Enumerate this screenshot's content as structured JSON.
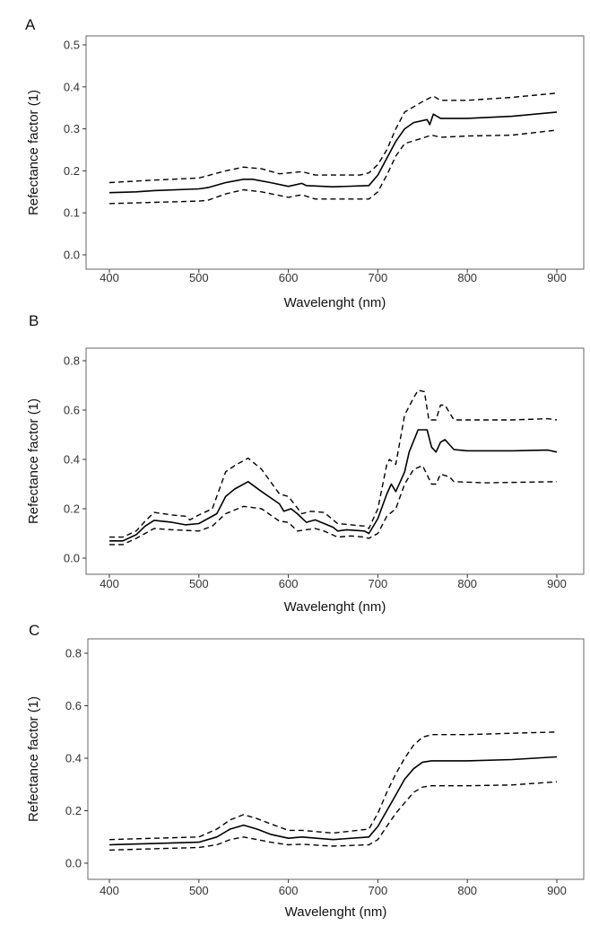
{
  "chart_data": [
    {
      "panel_label": "A",
      "type": "line",
      "xlabel": "Wavelenght (nm)",
      "ylabel": "Refectance factor (1)",
      "xlim": [
        400,
        900
      ],
      "ylim": [
        0,
        0.5
      ],
      "xticks": [
        400,
        500,
        600,
        700,
        800,
        900
      ],
      "yticks": [
        "0.0",
        "0.1",
        "0.2",
        "0.3",
        "0.4",
        "0.5"
      ],
      "grid": false,
      "series": [
        {
          "style": "solid",
          "points": [
            [
              400,
              0.148
            ],
            [
              430,
              0.15
            ],
            [
              450,
              0.153
            ],
            [
              500,
              0.157
            ],
            [
              510,
              0.16
            ],
            [
              530,
              0.172
            ],
            [
              550,
              0.18
            ],
            [
              560,
              0.18
            ],
            [
              580,
              0.172
            ],
            [
              600,
              0.163
            ],
            [
              615,
              0.17
            ],
            [
              620,
              0.165
            ],
            [
              650,
              0.162
            ],
            [
              690,
              0.165
            ],
            [
              700,
              0.19
            ],
            [
              710,
              0.23
            ],
            [
              720,
              0.27
            ],
            [
              730,
              0.3
            ],
            [
              740,
              0.315
            ],
            [
              755,
              0.322
            ],
            [
              758,
              0.31
            ],
            [
              762,
              0.335
            ],
            [
              770,
              0.325
            ],
            [
              800,
              0.325
            ],
            [
              850,
              0.33
            ],
            [
              900,
              0.34
            ]
          ]
        },
        {
          "style": "dashed",
          "points": [
            [
              400,
              0.172
            ],
            [
              450,
              0.178
            ],
            [
              500,
              0.183
            ],
            [
              530,
              0.2
            ],
            [
              550,
              0.209
            ],
            [
              570,
              0.205
            ],
            [
              590,
              0.193
            ],
            [
              615,
              0.198
            ],
            [
              630,
              0.19
            ],
            [
              680,
              0.19
            ],
            [
              690,
              0.195
            ],
            [
              700,
              0.215
            ],
            [
              710,
              0.25
            ],
            [
              720,
              0.3
            ],
            [
              730,
              0.34
            ],
            [
              750,
              0.365
            ],
            [
              762,
              0.378
            ],
            [
              770,
              0.368
            ],
            [
              800,
              0.368
            ],
            [
              850,
              0.375
            ],
            [
              900,
              0.385
            ]
          ]
        },
        {
          "style": "dashed",
          "points": [
            [
              400,
              0.122
            ],
            [
              450,
              0.125
            ],
            [
              500,
              0.128
            ],
            [
              510,
              0.13
            ],
            [
              530,
              0.145
            ],
            [
              550,
              0.155
            ],
            [
              570,
              0.15
            ],
            [
              600,
              0.137
            ],
            [
              615,
              0.143
            ],
            [
              630,
              0.133
            ],
            [
              690,
              0.133
            ],
            [
              700,
              0.15
            ],
            [
              710,
              0.19
            ],
            [
              720,
              0.235
            ],
            [
              730,
              0.265
            ],
            [
              750,
              0.278
            ],
            [
              760,
              0.285
            ],
            [
              770,
              0.28
            ],
            [
              800,
              0.283
            ],
            [
              850,
              0.285
            ],
            [
              900,
              0.297
            ]
          ]
        }
      ]
    },
    {
      "panel_label": "B",
      "type": "line",
      "xlabel": "Wavelenght (nm)",
      "ylabel": "Refectance factor (1)",
      "xlim": [
        400,
        900
      ],
      "ylim": [
        0,
        0.8
      ],
      "xticks": [
        400,
        500,
        600,
        700,
        800,
        900
      ],
      "yticks": [
        "0.0",
        "0.2",
        "0.4",
        "0.6",
        "0.8"
      ],
      "grid": false,
      "series": [
        {
          "style": "solid",
          "points": [
            [
              400,
              0.07
            ],
            [
              415,
              0.07
            ],
            [
              430,
              0.095
            ],
            [
              440,
              0.13
            ],
            [
              450,
              0.153
            ],
            [
              470,
              0.145
            ],
            [
              485,
              0.135
            ],
            [
              500,
              0.14
            ],
            [
              510,
              0.16
            ],
            [
              520,
              0.18
            ],
            [
              530,
              0.25
            ],
            [
              540,
              0.28
            ],
            [
              555,
              0.31
            ],
            [
              570,
              0.27
            ],
            [
              590,
              0.22
            ],
            [
              595,
              0.19
            ],
            [
              603,
              0.2
            ],
            [
              610,
              0.18
            ],
            [
              620,
              0.145
            ],
            [
              630,
              0.155
            ],
            [
              650,
              0.125
            ],
            [
              655,
              0.11
            ],
            [
              665,
              0.115
            ],
            [
              685,
              0.11
            ],
            [
              690,
              0.1
            ],
            [
              700,
              0.16
            ],
            [
              710,
              0.26
            ],
            [
              715,
              0.3
            ],
            [
              720,
              0.27
            ],
            [
              725,
              0.31
            ],
            [
              730,
              0.35
            ],
            [
              735,
              0.43
            ],
            [
              745,
              0.52
            ],
            [
              755,
              0.52
            ],
            [
              760,
              0.45
            ],
            [
              765,
              0.43
            ],
            [
              770,
              0.47
            ],
            [
              775,
              0.48
            ],
            [
              785,
              0.44
            ],
            [
              800,
              0.435
            ],
            [
              850,
              0.435
            ],
            [
              890,
              0.438
            ],
            [
              900,
              0.43
            ]
          ]
        },
        {
          "style": "dashed",
          "points": [
            [
              400,
              0.085
            ],
            [
              415,
              0.085
            ],
            [
              430,
              0.11
            ],
            [
              440,
              0.15
            ],
            [
              450,
              0.185
            ],
            [
              470,
              0.175
            ],
            [
              485,
              0.17
            ],
            [
              490,
              0.155
            ],
            [
              500,
              0.175
            ],
            [
              515,
              0.2
            ],
            [
              530,
              0.35
            ],
            [
              540,
              0.375
            ],
            [
              555,
              0.405
            ],
            [
              570,
              0.36
            ],
            [
              590,
              0.26
            ],
            [
              600,
              0.25
            ],
            [
              615,
              0.18
            ],
            [
              625,
              0.19
            ],
            [
              640,
              0.185
            ],
            [
              655,
              0.14
            ],
            [
              685,
              0.13
            ],
            [
              690,
              0.12
            ],
            [
              700,
              0.2
            ],
            [
              710,
              0.38
            ],
            [
              713,
              0.4
            ],
            [
              720,
              0.38
            ],
            [
              730,
              0.58
            ],
            [
              740,
              0.65
            ],
            [
              745,
              0.68
            ],
            [
              752,
              0.675
            ],
            [
              757,
              0.56
            ],
            [
              765,
              0.56
            ],
            [
              770,
              0.62
            ],
            [
              775,
              0.62
            ],
            [
              785,
              0.56
            ],
            [
              800,
              0.56
            ],
            [
              850,
              0.56
            ],
            [
              890,
              0.565
            ],
            [
              900,
              0.56
            ]
          ]
        },
        {
          "style": "dashed",
          "points": [
            [
              400,
              0.055
            ],
            [
              415,
              0.055
            ],
            [
              430,
              0.08
            ],
            [
              450,
              0.12
            ],
            [
              470,
              0.115
            ],
            [
              500,
              0.11
            ],
            [
              515,
              0.13
            ],
            [
              530,
              0.18
            ],
            [
              550,
              0.21
            ],
            [
              570,
              0.2
            ],
            [
              590,
              0.15
            ],
            [
              600,
              0.145
            ],
            [
              610,
              0.11
            ],
            [
              630,
              0.12
            ],
            [
              640,
              0.11
            ],
            [
              655,
              0.085
            ],
            [
              670,
              0.09
            ],
            [
              685,
              0.085
            ],
            [
              690,
              0.08
            ],
            [
              700,
              0.1
            ],
            [
              710,
              0.17
            ],
            [
              720,
              0.2
            ],
            [
              730,
              0.3
            ],
            [
              740,
              0.36
            ],
            [
              750,
              0.375
            ],
            [
              760,
              0.3
            ],
            [
              765,
              0.3
            ],
            [
              770,
              0.34
            ],
            [
              780,
              0.33
            ],
            [
              785,
              0.31
            ],
            [
              820,
              0.305
            ],
            [
              900,
              0.31
            ]
          ]
        }
      ]
    },
    {
      "panel_label": "C",
      "type": "line",
      "xlabel": "Wavelenght (nm)",
      "ylabel": "Refectance factor (1)",
      "xlim": [
        400,
        900
      ],
      "ylim": [
        0,
        0.8
      ],
      "xticks": [
        400,
        500,
        600,
        700,
        800,
        900
      ],
      "yticks": [
        "0.0",
        "0.2",
        "0.4",
        "0.6",
        "0.8"
      ],
      "grid": false,
      "series": [
        {
          "style": "solid",
          "points": [
            [
              400,
              0.07
            ],
            [
              450,
              0.075
            ],
            [
              500,
              0.08
            ],
            [
              520,
              0.1
            ],
            [
              535,
              0.13
            ],
            [
              550,
              0.145
            ],
            [
              565,
              0.13
            ],
            [
              580,
              0.11
            ],
            [
              600,
              0.095
            ],
            [
              615,
              0.1
            ],
            [
              650,
              0.09
            ],
            [
              690,
              0.1
            ],
            [
              700,
              0.14
            ],
            [
              710,
              0.2
            ],
            [
              720,
              0.26
            ],
            [
              730,
              0.32
            ],
            [
              740,
              0.36
            ],
            [
              750,
              0.385
            ],
            [
              760,
              0.39
            ],
            [
              800,
              0.39
            ],
            [
              850,
              0.395
            ],
            [
              900,
              0.405
            ]
          ]
        },
        {
          "style": "dashed",
          "points": [
            [
              400,
              0.09
            ],
            [
              450,
              0.095
            ],
            [
              500,
              0.1
            ],
            [
              520,
              0.13
            ],
            [
              535,
              0.165
            ],
            [
              550,
              0.185
            ],
            [
              565,
              0.17
            ],
            [
              580,
              0.15
            ],
            [
              600,
              0.125
            ],
            [
              615,
              0.125
            ],
            [
              650,
              0.115
            ],
            [
              690,
              0.13
            ],
            [
              700,
              0.19
            ],
            [
              710,
              0.27
            ],
            [
              720,
              0.34
            ],
            [
              730,
              0.4
            ],
            [
              740,
              0.45
            ],
            [
              750,
              0.48
            ],
            [
              760,
              0.49
            ],
            [
              800,
              0.49
            ],
            [
              850,
              0.495
            ],
            [
              900,
              0.5
            ]
          ]
        },
        {
          "style": "dashed",
          "points": [
            [
              400,
              0.05
            ],
            [
              450,
              0.055
            ],
            [
              500,
              0.06
            ],
            [
              520,
              0.07
            ],
            [
              535,
              0.09
            ],
            [
              550,
              0.1
            ],
            [
              565,
              0.09
            ],
            [
              580,
              0.08
            ],
            [
              600,
              0.07
            ],
            [
              615,
              0.072
            ],
            [
              650,
              0.065
            ],
            [
              690,
              0.07
            ],
            [
              700,
              0.09
            ],
            [
              710,
              0.14
            ],
            [
              720,
              0.19
            ],
            [
              730,
              0.23
            ],
            [
              740,
              0.27
            ],
            [
              750,
              0.29
            ],
            [
              760,
              0.295
            ],
            [
              800,
              0.295
            ],
            [
              850,
              0.298
            ],
            [
              900,
              0.31
            ]
          ]
        }
      ]
    }
  ]
}
